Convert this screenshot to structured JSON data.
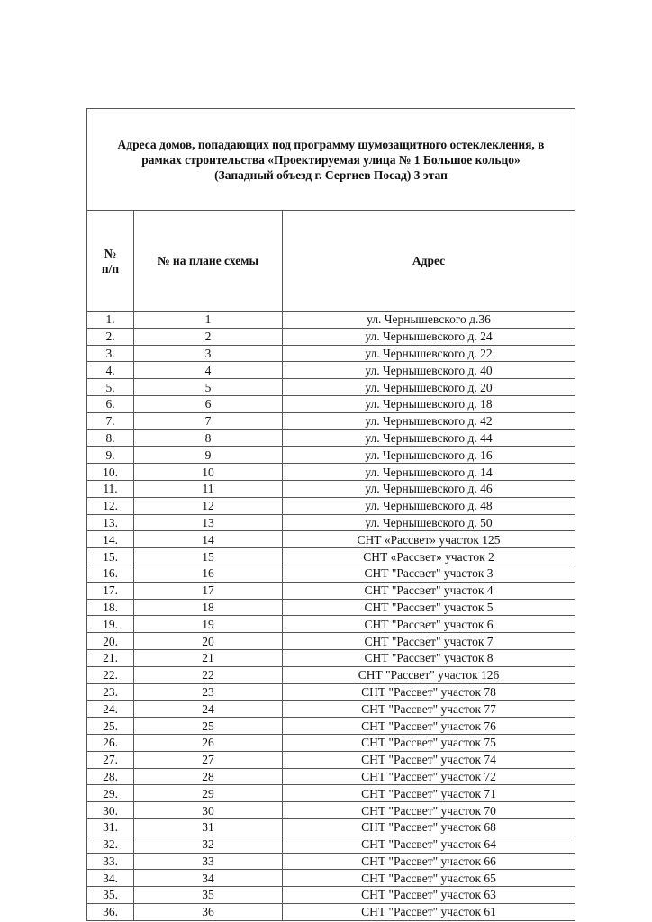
{
  "title_lines": [
    "Адреса домов, попадающих под программу шумозащитного остеклекления, в",
    "рамках строительства «Проектируемая улица № 1 Большое кольцо»",
    "(Западный объезд г. Сергиев Посад) 3 этап"
  ],
  "headers": {
    "num_line1": "№",
    "num_line2": "п/п",
    "plan": "№ на плане схемы",
    "address": "Адрес"
  },
  "rows": [
    [
      "1.",
      "1",
      "ул. Чернышевского д.36"
    ],
    [
      "2.",
      "2",
      "ул. Чернышевского д. 24"
    ],
    [
      "3.",
      "3",
      "ул. Чернышевского д. 22"
    ],
    [
      "4.",
      "4",
      "ул. Чернышевского д. 40"
    ],
    [
      "5.",
      "5",
      "ул. Чернышевского д. 20"
    ],
    [
      "6.",
      "6",
      "ул. Чернышевского д. 18"
    ],
    [
      "7.",
      "7",
      "ул. Чернышевского д. 42"
    ],
    [
      "8.",
      "8",
      "ул. Чернышевского д. 44"
    ],
    [
      "9.",
      "9",
      "ул. Чернышевского д. 16"
    ],
    [
      "10.",
      "10",
      "ул. Чернышевского д. 14"
    ],
    [
      "11.",
      "11",
      "ул. Чернышевского д. 46"
    ],
    [
      "12.",
      "12",
      "ул. Чернышевского д. 48"
    ],
    [
      "13.",
      "13",
      "ул. Чернышевского д. 50"
    ],
    [
      "14.",
      "14",
      "СНТ «Рассвет» участок 125"
    ],
    [
      "15.",
      "15",
      "СНТ «Рассвет» участок 2"
    ],
    [
      "16.",
      "16",
      "СНТ \"Рассвет\" участок 3"
    ],
    [
      "17.",
      "17",
      "СНТ \"Рассвет\" участок 4"
    ],
    [
      "18.",
      "18",
      "СНТ \"Рассвет\" участок 5"
    ],
    [
      "19.",
      "19",
      "СНТ \"Рассвет\" участок 6"
    ],
    [
      "20.",
      "20",
      "СНТ \"Рассвет\" участок 7"
    ],
    [
      "21.",
      "21",
      "СНТ \"Рассвет\" участок 8"
    ],
    [
      "22.",
      "22",
      "СНТ \"Рассвет\" участок 126"
    ],
    [
      "23.",
      "23",
      "СНТ \"Рассвет\" участок 78"
    ],
    [
      "24.",
      "24",
      "СНТ \"Рассвет\" участок 77"
    ],
    [
      "25.",
      "25",
      "СНТ \"Рассвет\" участок 76"
    ],
    [
      "26.",
      "26",
      "СНТ \"Рассвет\" участок 75"
    ],
    [
      "27.",
      "27",
      "СНТ \"Рассвет\" участок 74"
    ],
    [
      "28.",
      "28",
      "СНТ \"Рассвет\" участок 72"
    ],
    [
      "29.",
      "29",
      "СНТ \"Рассвет\" участок 71"
    ],
    [
      "30.",
      "30",
      "СНТ \"Рассвет\" участок 70"
    ],
    [
      "31.",
      "31",
      "СНТ \"Рассвет\" участок 68"
    ],
    [
      "32.",
      "32",
      "СНТ \"Рассвет\" участок 64"
    ],
    [
      "33.",
      "33",
      "СНТ \"Рассвет\" участок 66"
    ],
    [
      "34.",
      "34",
      "СНТ \"Рассвет\" участок 65"
    ],
    [
      "35.",
      "35",
      "СНТ \"Рассвет\" участок 63"
    ],
    [
      "36.",
      "36",
      "СНТ \"Рассвет\" участок 61"
    ]
  ]
}
